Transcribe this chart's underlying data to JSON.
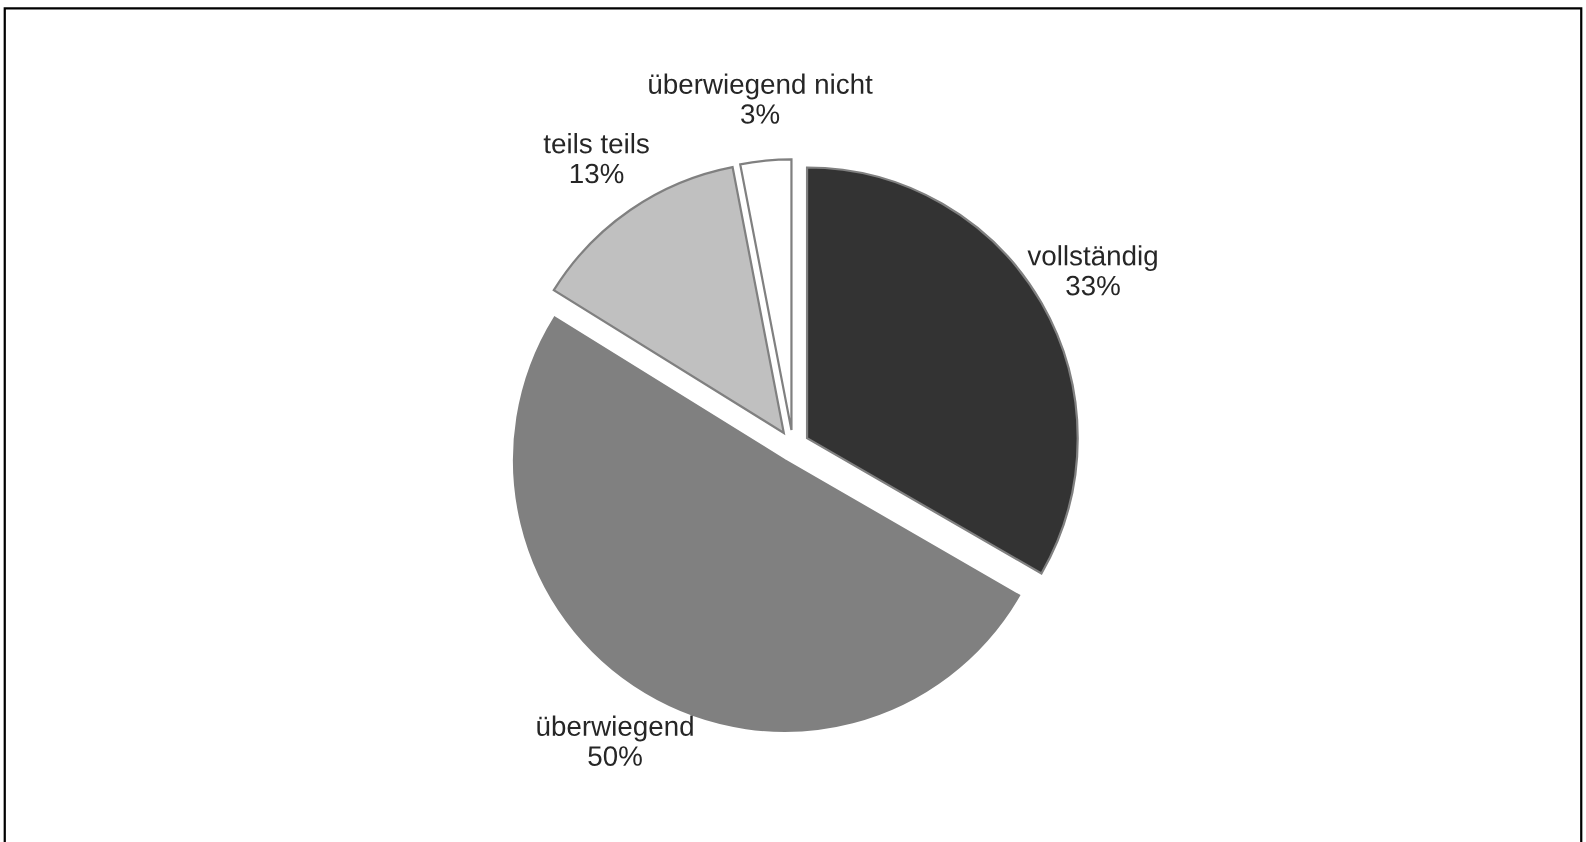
{
  "chart_data": {
    "type": "pie",
    "categories": [
      "vollständig",
      "überwiegend",
      "teils teils",
      "überwiegend nicht"
    ],
    "values": [
      33,
      50,
      13,
      3
    ],
    "value_labels": [
      "33%",
      "50%",
      "13%",
      "3%"
    ],
    "colors": [
      "#333333",
      "#808080",
      "#c0c0c0",
      "#ffffff"
    ],
    "legend": false
  }
}
